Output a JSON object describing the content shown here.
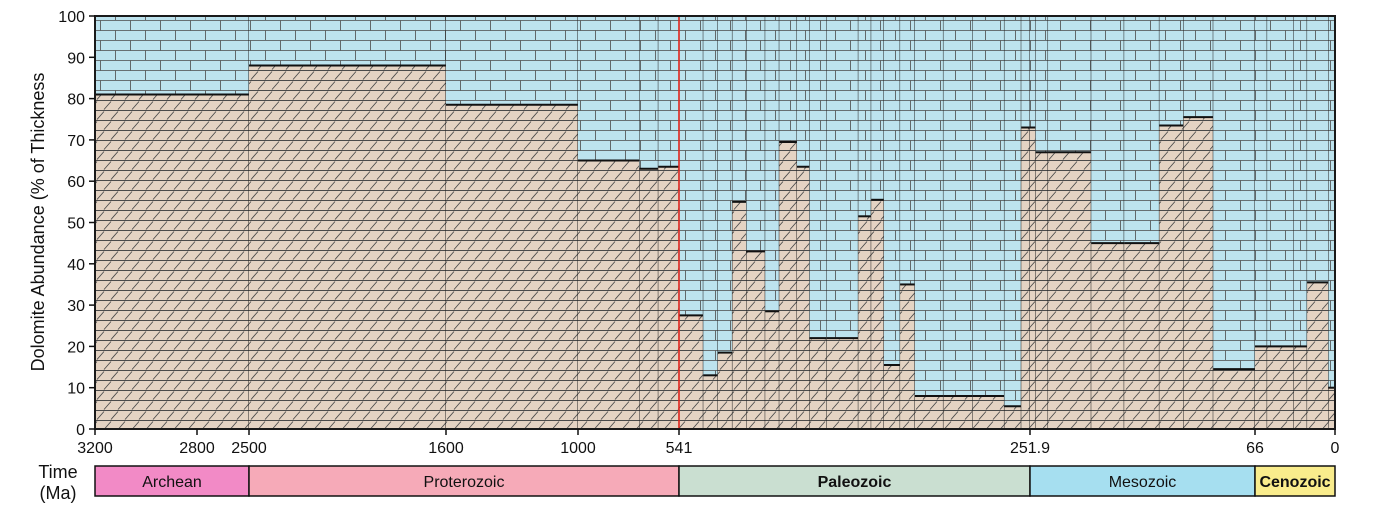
{
  "chart_data": {
    "type": "area",
    "title": "",
    "ylabel": "Dolomite Abundance (% of Thickness",
    "xlabel_lines": [
      "Time",
      "(Ma)"
    ],
    "ylim": [
      0,
      100
    ],
    "y_ticks": [
      0,
      10,
      20,
      30,
      40,
      50,
      60,
      70,
      80,
      90,
      100
    ],
    "x_ticks": [
      {
        "value": 3200,
        "label": "3200"
      },
      {
        "value": 2800,
        "label": "2800"
      },
      {
        "value": 2500,
        "label": "2500"
      },
      {
        "value": 1600,
        "label": "1600"
      },
      {
        "value": 1000,
        "label": "1000"
      },
      {
        "value": 541,
        "label": "541"
      },
      {
        "value": 251.9,
        "label": "251.9"
      },
      {
        "value": 66,
        "label": "66"
      },
      {
        "value": 0,
        "label": "0"
      }
    ],
    "boundary_age_ma": 541,
    "boundary_color": "#e0241b",
    "dolomite_color": "#e4d3c3",
    "limestone_color": "#bde3ee",
    "series": [
      {
        "start_ma": 3200,
        "end_ma": 2500,
        "dolomite_pct": 81
      },
      {
        "start_ma": 2500,
        "end_ma": 1600,
        "dolomite_pct": 88
      },
      {
        "start_ma": 1600,
        "end_ma": 1000,
        "dolomite_pct": 78.5
      },
      {
        "start_ma": 1000,
        "end_ma": 720,
        "dolomite_pct": 65
      },
      {
        "start_ma": 720,
        "end_ma": 635,
        "dolomite_pct": 63
      },
      {
        "start_ma": 635,
        "end_ma": 541,
        "dolomite_pct": 63.5
      },
      {
        "start_ma": 541,
        "end_ma": 521,
        "dolomite_pct": 27.5
      },
      {
        "start_ma": 521,
        "end_ma": 509,
        "dolomite_pct": 13
      },
      {
        "start_ma": 509,
        "end_ma": 497,
        "dolomite_pct": 18.5
      },
      {
        "start_ma": 497,
        "end_ma": 485.4,
        "dolomite_pct": 55
      },
      {
        "start_ma": 485.4,
        "end_ma": 470,
        "dolomite_pct": 43
      },
      {
        "start_ma": 470,
        "end_ma": 458.4,
        "dolomite_pct": 28.5
      },
      {
        "start_ma": 458.4,
        "end_ma": 443.8,
        "dolomite_pct": 69.5
      },
      {
        "start_ma": 443.8,
        "end_ma": 433.4,
        "dolomite_pct": 63.5
      },
      {
        "start_ma": 433.4,
        "end_ma": 419.2,
        "dolomite_pct": 22
      },
      {
        "start_ma": 419.2,
        "end_ma": 393.3,
        "dolomite_pct": 22
      },
      {
        "start_ma": 393.3,
        "end_ma": 382.7,
        "dolomite_pct": 51.5
      },
      {
        "start_ma": 382.7,
        "end_ma": 372.2,
        "dolomite_pct": 55.5
      },
      {
        "start_ma": 372.2,
        "end_ma": 358.9,
        "dolomite_pct": 15.5
      },
      {
        "start_ma": 358.9,
        "end_ma": 346.7,
        "dolomite_pct": 35
      },
      {
        "start_ma": 346.7,
        "end_ma": 323.2,
        "dolomite_pct": 8
      },
      {
        "start_ma": 323.2,
        "end_ma": 298.9,
        "dolomite_pct": 8
      },
      {
        "start_ma": 298.9,
        "end_ma": 272.95,
        "dolomite_pct": 8
      },
      {
        "start_ma": 272.95,
        "end_ma": 259.1,
        "dolomite_pct": 5.5
      },
      {
        "start_ma": 259.1,
        "end_ma": 251.9,
        "dolomite_pct": 73
      },
      {
        "start_ma": 251.9,
        "end_ma": 247.2,
        "dolomite_pct": 73
      },
      {
        "start_ma": 247.2,
        "end_ma": 237,
        "dolomite_pct": 67
      },
      {
        "start_ma": 237,
        "end_ma": 201.3,
        "dolomite_pct": 67
      },
      {
        "start_ma": 201.3,
        "end_ma": 174.1,
        "dolomite_pct": 45
      },
      {
        "start_ma": 174.1,
        "end_ma": 145,
        "dolomite_pct": 45
      },
      {
        "start_ma": 145,
        "end_ma": 125,
        "dolomite_pct": 73.5
      },
      {
        "start_ma": 125,
        "end_ma": 100.5,
        "dolomite_pct": 75.5
      },
      {
        "start_ma": 100.5,
        "end_ma": 66,
        "dolomite_pct": 14.5
      },
      {
        "start_ma": 66,
        "end_ma": 56,
        "dolomite_pct": 20
      },
      {
        "start_ma": 56,
        "end_ma": 33.9,
        "dolomite_pct": 20
      },
      {
        "start_ma": 33.9,
        "end_ma": 23.03,
        "dolomite_pct": 20
      },
      {
        "start_ma": 23.03,
        "end_ma": 5.333,
        "dolomite_pct": 35.5
      },
      {
        "start_ma": 5.333,
        "end_ma": 0,
        "dolomite_pct": 10
      }
    ],
    "eras": [
      {
        "name": "Archean",
        "start_ma": 3200,
        "end_ma": 2500,
        "color": "#f28ac6",
        "bold": false
      },
      {
        "name": "Proterozoic",
        "start_ma": 2500,
        "end_ma": 541,
        "color": "#f6aab8",
        "bold": false
      },
      {
        "name": "Paleozoic",
        "start_ma": 541,
        "end_ma": 251.9,
        "color": "#cadfd1",
        "bold": true
      },
      {
        "name": "Mesozoic",
        "start_ma": 251.9,
        "end_ma": 66,
        "color": "#a6dff0",
        "bold": false
      },
      {
        "name": "Cenozoic",
        "start_ma": 66,
        "end_ma": 0,
        "color": "#f9ec8c",
        "bold": true
      }
    ]
  }
}
